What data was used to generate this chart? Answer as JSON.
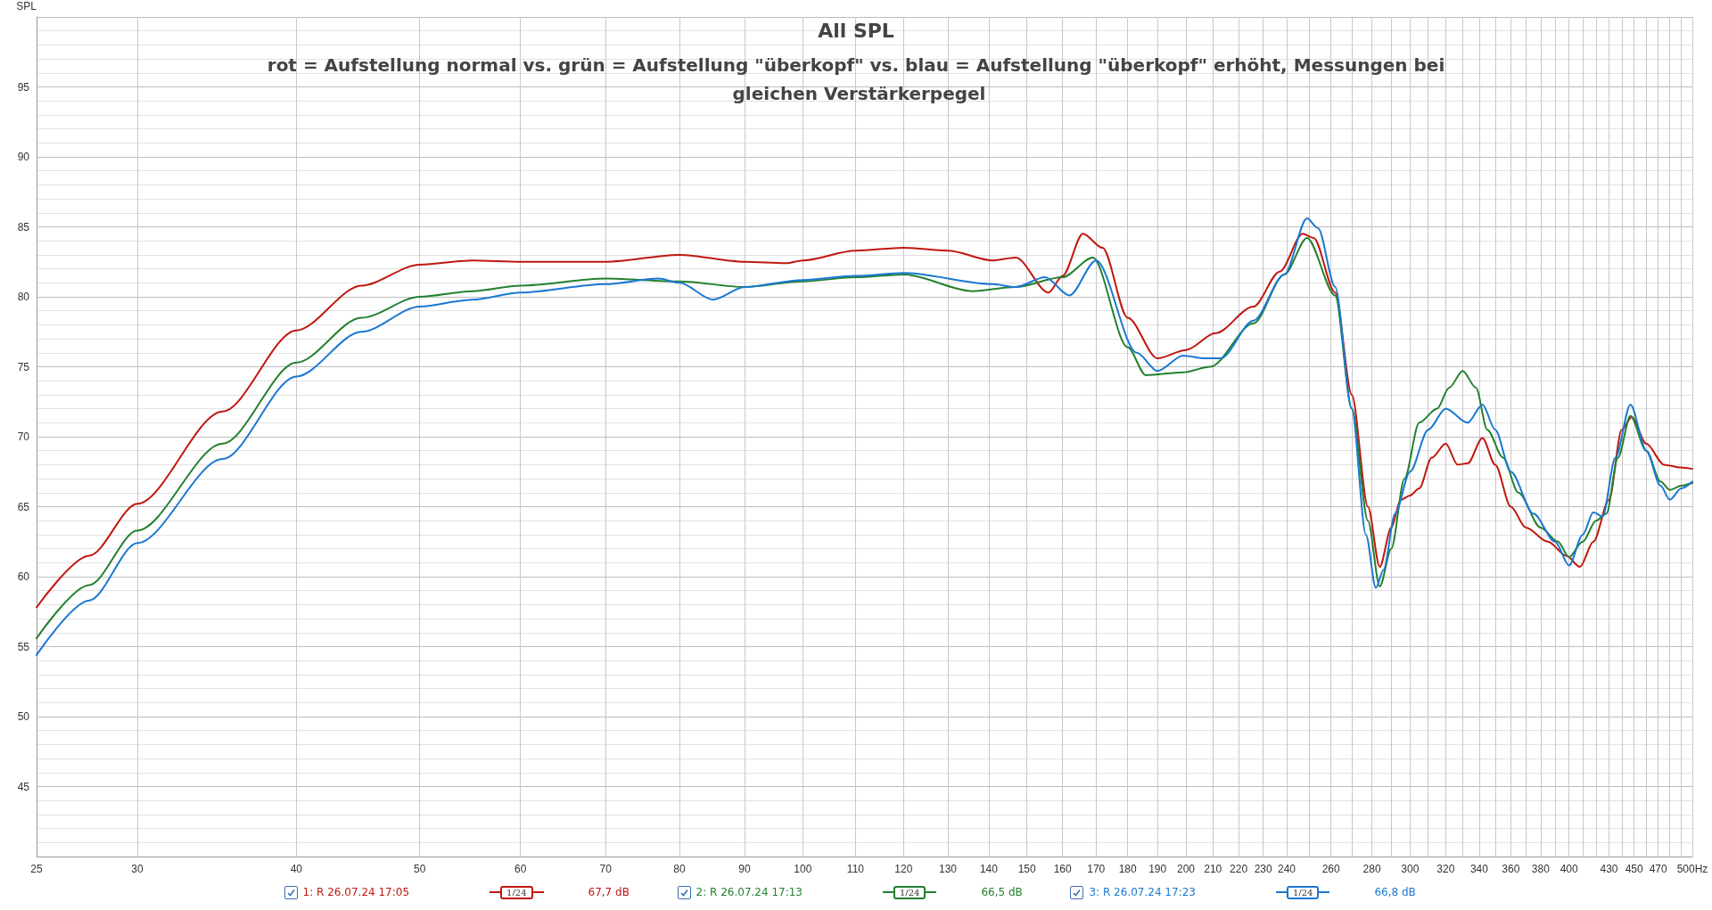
{
  "chart_data": {
    "type": "line",
    "title": "All SPL",
    "subtitle": "rot = Aufstellung normal vs. grün = Aufstellung \"überkopf\" vs. blau = Aufstellung \"überkopf\" erhöht, Messungen bei gleichen Verstärkerpegel",
    "ylabel": "SPL",
    "log": "x",
    "grid": true,
    "legend": "bottom",
    "marker": "none",
    "line_style": "solid",
    "xlim": [
      25,
      500
    ],
    "ylim": [
      40,
      100
    ],
    "xticks": [
      25,
      30,
      40,
      50,
      60,
      70,
      80,
      90,
      100,
      110,
      120,
      130,
      140,
      150,
      160,
      170,
      180,
      190,
      200,
      210,
      220,
      230,
      240,
      {
        "value": 250,
        "label": null
      },
      260,
      {
        "value": 270,
        "label": null
      },
      280,
      {
        "value": 290,
        "label": null
      },
      300,
      {
        "value": 310,
        "label": null
      },
      320,
      {
        "value": 330,
        "label": null
      },
      340,
      {
        "value": 350,
        "label": null
      },
      360,
      {
        "value": 370,
        "label": null
      },
      380,
      {
        "value": 390,
        "label": null
      },
      400,
      {
        "value": 410,
        "label": null
      },
      {
        "value": 420,
        "label": null
      },
      430,
      {
        "value": 440,
        "label": null
      },
      450,
      {
        "value": 460,
        "label": null
      },
      470,
      {
        "value": 480,
        "label": null
      },
      {
        "value": 490,
        "label": null
      },
      {
        "value": 500,
        "label": "500Hz"
      }
    ],
    "yticks": [
      45,
      50,
      55,
      60,
      65,
      70,
      75,
      80,
      85,
      90,
      95
    ],
    "annotations": [
      "1/24",
      "67,7 dB",
      "1/24",
      "66,5 dB",
      "1/24",
      "66,8 dB"
    ],
    "series": [
      {
        "name": "1: R 26.07.24 17:05",
        "color": "#c0170f",
        "x": [
          25,
          27.5,
          30,
          35,
          40,
          45,
          50,
          55,
          60,
          70,
          80,
          90,
          97,
          100,
          110,
          120,
          130,
          141,
          147,
          156,
          160,
          166,
          172,
          180,
          190,
          200,
          211,
          226,
          237,
          247,
          252,
          262,
          270,
          278,
          284,
          290,
          295,
          300,
          305,
          312,
          320,
          327,
          333,
          342,
          350,
          360,
          370,
          385,
          398,
          408,
          418,
          430,
          440,
          448,
          460,
          475,
          490,
          500
        ],
        "values": [
          57.8,
          61.5,
          65.2,
          71.8,
          77.6,
          80.8,
          82.3,
          82.6,
          82.5,
          82.5,
          83.0,
          82.5,
          82.4,
          82.6,
          83.3,
          83.5,
          83.3,
          82.6,
          82.8,
          80.3,
          81.5,
          84.5,
          83.5,
          78.5,
          75.6,
          76.2,
          77.4,
          79.3,
          81.8,
          84.5,
          84.2,
          80.3,
          73.0,
          65.0,
          60.7,
          63.5,
          65.5,
          65.8,
          66.3,
          68.5,
          69.5,
          68.0,
          68.1,
          69.9,
          68.0,
          65.0,
          63.5,
          62.5,
          61.5,
          60.7,
          62.5,
          65.5,
          70.5,
          71.4,
          69.5,
          68.0,
          67.8,
          67.7
        ]
      },
      {
        "name": "2: R 26.07.24 17:13",
        "color": "#23802f",
        "x": [
          25,
          27.5,
          30,
          35,
          40,
          45,
          50,
          55,
          60,
          70,
          80,
          90,
          100,
          110,
          120,
          136,
          147,
          160,
          169,
          180,
          186,
          199,
          209,
          226,
          239,
          249,
          262,
          270,
          278,
          284,
          290,
          297,
          305,
          315,
          322,
          330,
          338,
          345,
          355,
          365,
          380,
          392,
          400,
          410,
          420,
          428,
          437,
          447,
          460,
          472,
          480,
          490,
          500
        ],
        "values": [
          55.6,
          59.4,
          63.3,
          69.5,
          75.3,
          78.5,
          80.0,
          80.4,
          80.8,
          81.3,
          81.1,
          80.7,
          81.1,
          81.4,
          81.6,
          80.4,
          80.7,
          81.4,
          82.8,
          76.4,
          74.4,
          74.6,
          75.0,
          78.1,
          81.6,
          84.2,
          80.1,
          72.0,
          64.0,
          59.3,
          62.0,
          67.0,
          71.0,
          72.0,
          73.5,
          74.7,
          73.5,
          70.5,
          68.5,
          66.0,
          63.5,
          62.5,
          61.4,
          62.5,
          64.0,
          64.5,
          68.5,
          71.5,
          69.0,
          66.8,
          66.2,
          66.5,
          66.7
        ]
      },
      {
        "name": "3: R 26.07.24 17:23",
        "color": "#1a78d2",
        "x": [
          25,
          27.5,
          30,
          35,
          40,
          45,
          50,
          55,
          60,
          70,
          77,
          80,
          85,
          90,
          100,
          110,
          120,
          141,
          147,
          155,
          162,
          170,
          183,
          190,
          199,
          207,
          213,
          226,
          239,
          249,
          254,
          262,
          270,
          277,
          282,
          286,
          292,
          300,
          310,
          320,
          333,
          342,
          350,
          360,
          375,
          390,
          400,
          410,
          418,
          425,
          435,
          447,
          460,
          472,
          480,
          490,
          500
        ],
        "values": [
          54.4,
          58.3,
          62.4,
          68.4,
          74.3,
          77.5,
          79.3,
          79.8,
          80.3,
          80.9,
          81.3,
          81.0,
          79.8,
          80.7,
          81.2,
          81.5,
          81.7,
          80.9,
          80.7,
          81.4,
          80.1,
          82.6,
          76.0,
          74.7,
          75.8,
          75.6,
          75.6,
          78.3,
          81.6,
          85.6,
          84.9,
          80.7,
          72.0,
          63.0,
          59.2,
          60.5,
          64.5,
          67.5,
          70.5,
          72.0,
          71.0,
          72.3,
          70.5,
          67.5,
          64.5,
          62.5,
          60.8,
          63.0,
          64.6,
          64.3,
          68.5,
          72.3,
          69.0,
          66.5,
          65.5,
          66.3,
          66.8
        ]
      }
    ]
  }
}
